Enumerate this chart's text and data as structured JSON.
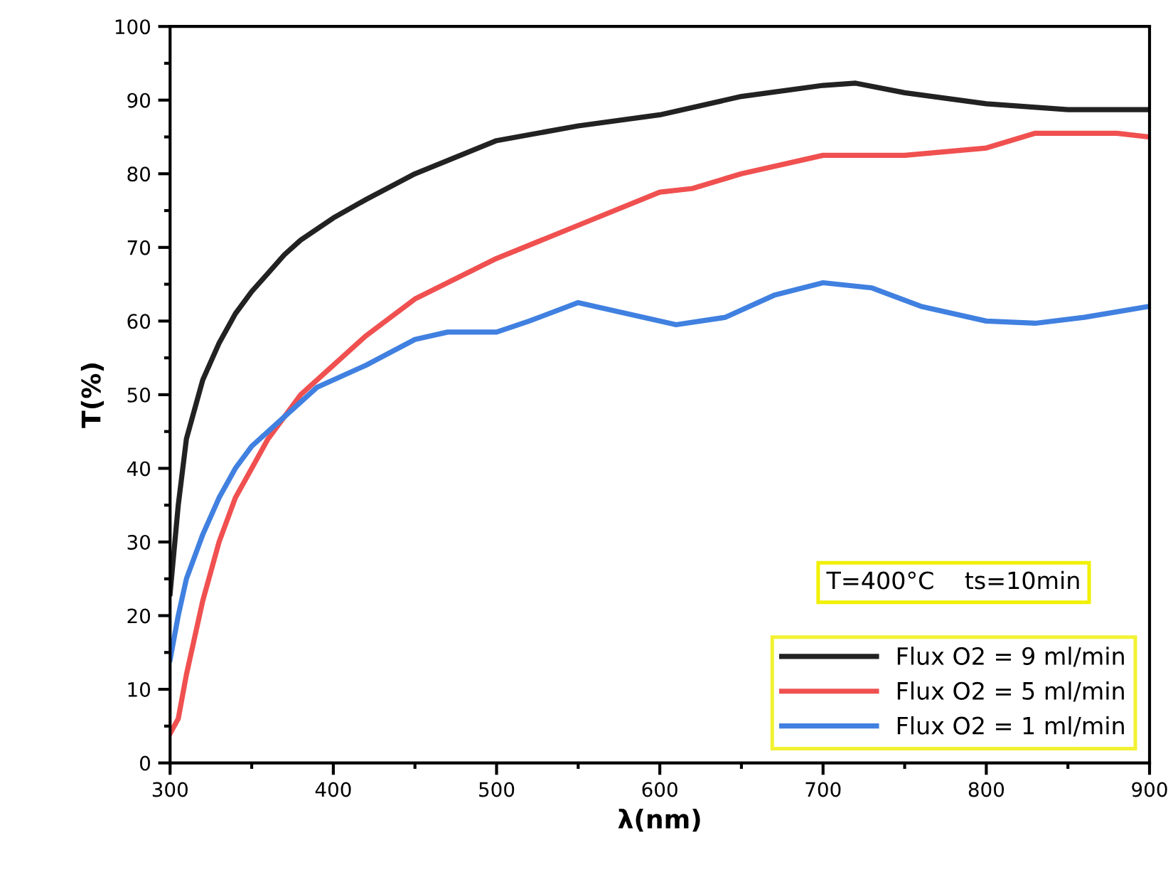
{
  "chart_data": {
    "type": "line",
    "xlabel": "λ(nm)",
    "ylabel": "T(%)",
    "xlim": [
      300,
      900
    ],
    "xticks": [
      300,
      400,
      500,
      600,
      700,
      800,
      900
    ],
    "ylim": [
      0,
      100
    ],
    "yticks": [
      0,
      10,
      20,
      30,
      40,
      50,
      60,
      70,
      80,
      90,
      100
    ],
    "grid": false,
    "legend": "bottom right",
    "marker": "none",
    "line_style": "solid",
    "annotations": [
      "T=400°C    ts=10min"
    ],
    "series": [
      {
        "name": "Flux O2 = 9 ml/min",
        "color": "#222222",
        "x": [
          300,
          305,
          310,
          320,
          330,
          340,
          350,
          360,
          370,
          380,
          400,
          420,
          450,
          500,
          550,
          600,
          650,
          700,
          720,
          750,
          800,
          850,
          900
        ],
        "values": [
          23,
          35,
          44,
          52,
          57,
          61,
          64,
          66.5,
          69,
          71,
          74,
          76.5,
          80,
          84.5,
          86.5,
          88,
          90.5,
          92,
          92.3,
          91,
          89.5,
          88.7,
          88.7
        ]
      },
      {
        "name": "Flux O2 = 5 ml/min",
        "color": "#f05050",
        "x": [
          300,
          305,
          310,
          320,
          330,
          340,
          350,
          360,
          380,
          400,
          420,
          450,
          500,
          550,
          600,
          620,
          650,
          700,
          750,
          800,
          830,
          880,
          900
        ],
        "values": [
          4,
          6,
          12,
          22,
          30,
          36,
          40,
          44,
          50,
          54,
          58,
          63,
          68.5,
          73,
          77.5,
          78,
          80,
          82.5,
          82.5,
          83.5,
          85.5,
          85.5,
          85
        ]
      },
      {
        "name": "Flux O2 = 1 ml/min",
        "color": "#4080e0",
        "x": [
          300,
          305,
          310,
          320,
          330,
          340,
          350,
          370,
          390,
          420,
          450,
          470,
          500,
          520,
          550,
          580,
          610,
          640,
          670,
          700,
          730,
          760,
          800,
          830,
          860,
          900
        ],
        "values": [
          14,
          20,
          25,
          31,
          36,
          40,
          43,
          47,
          51,
          54,
          57.5,
          58.5,
          58.5,
          60,
          62.5,
          61,
          59.5,
          60.5,
          63.5,
          65.2,
          64.5,
          62,
          60,
          59.7,
          60.5,
          62
        ]
      }
    ]
  }
}
